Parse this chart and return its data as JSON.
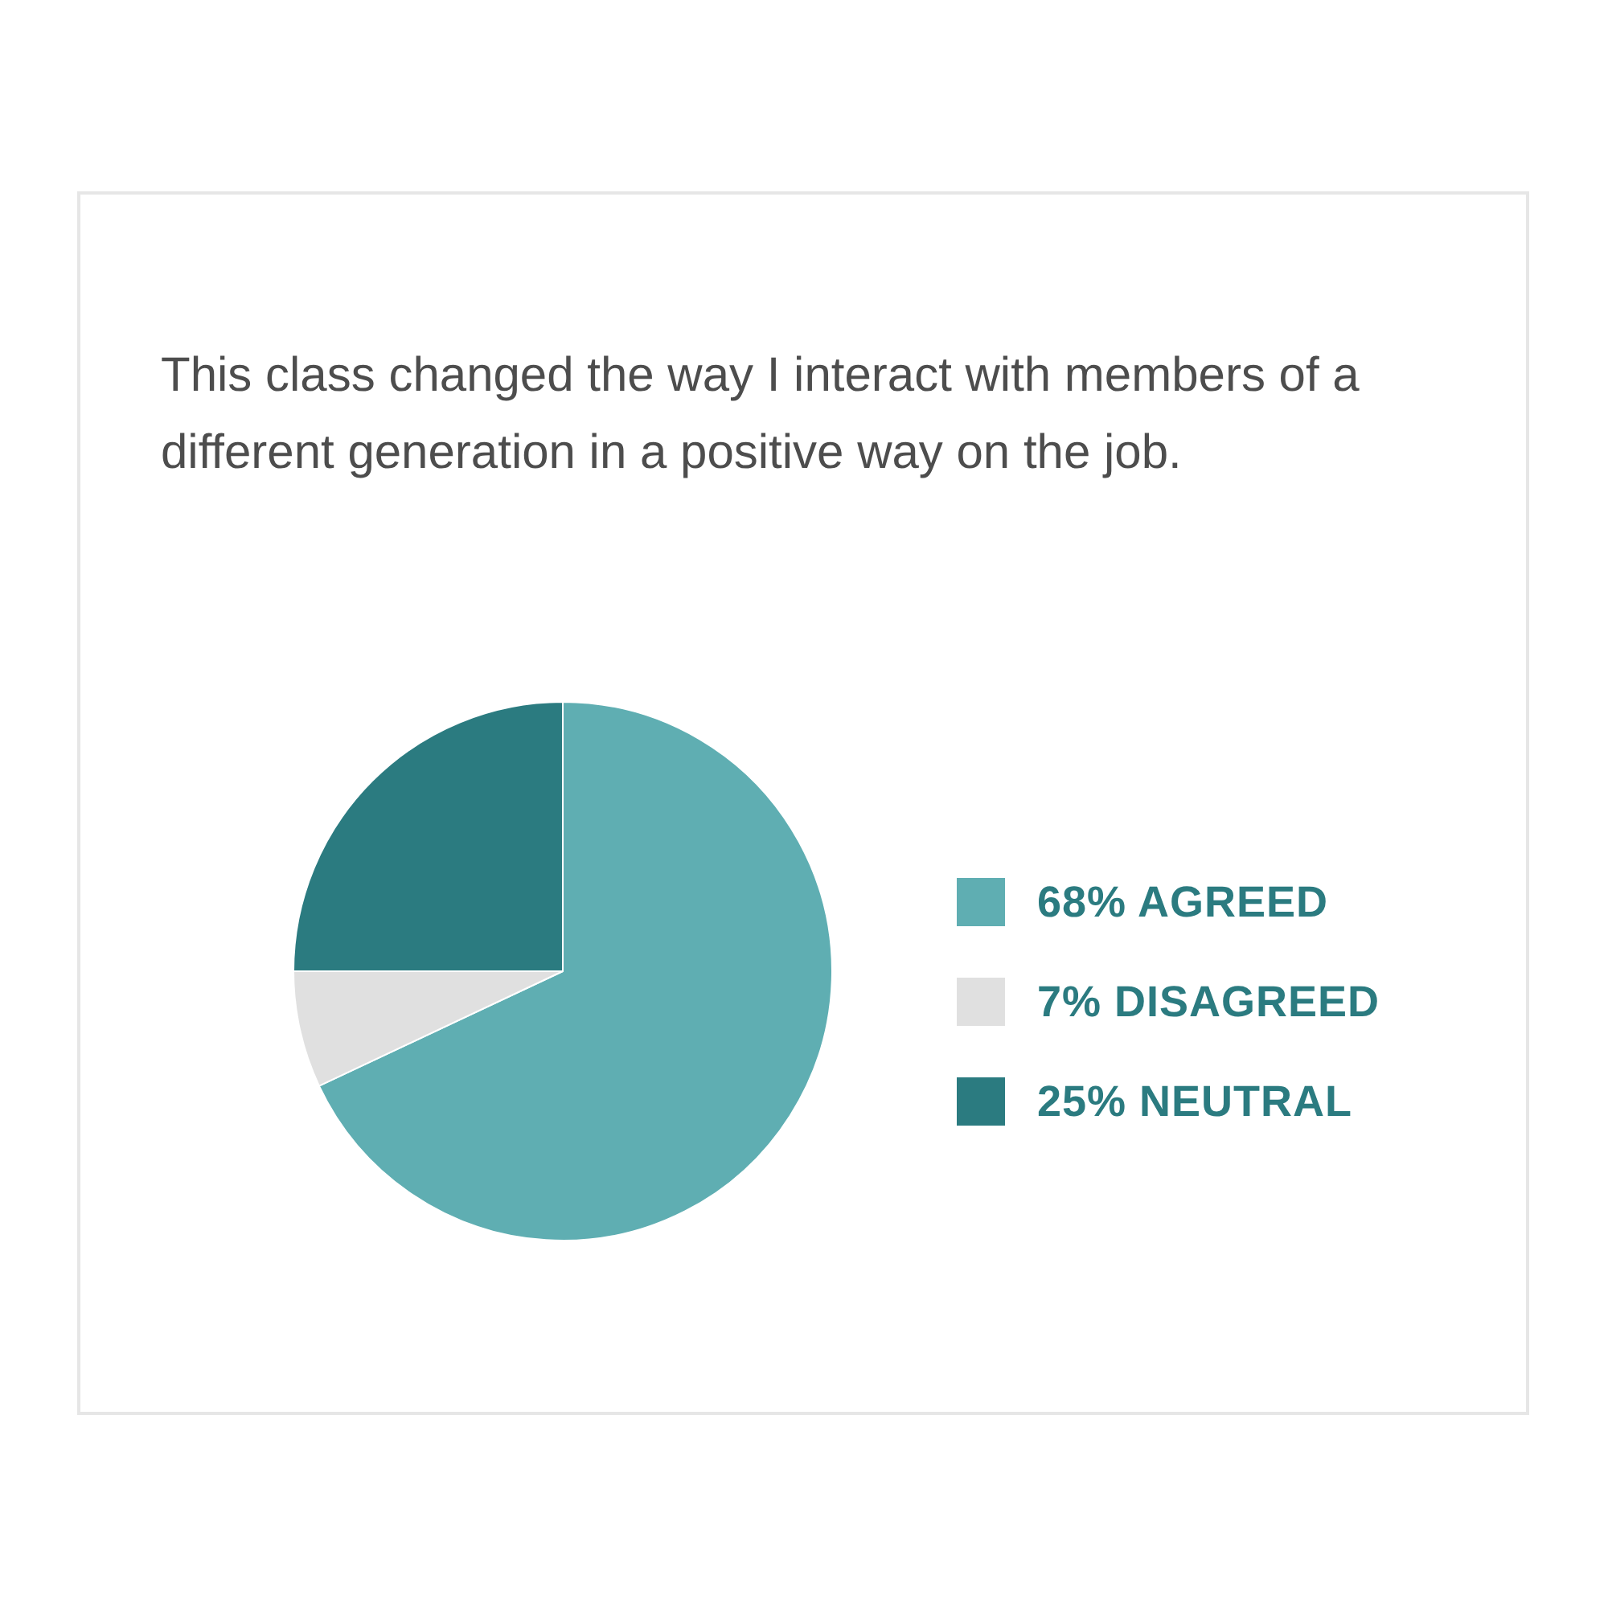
{
  "chart_data": {
    "type": "pie",
    "title": "This class changed the way I interact with members of a different generation in a positive way on the job.",
    "categories": [
      "68% AGREED",
      "7% DISAGREED",
      "25% NEUTRAL"
    ],
    "values": [
      68,
      7,
      25
    ],
    "colors": [
      "#5faeb2",
      "#e0e0e0",
      "#2b7b80"
    ],
    "legend": "right"
  }
}
